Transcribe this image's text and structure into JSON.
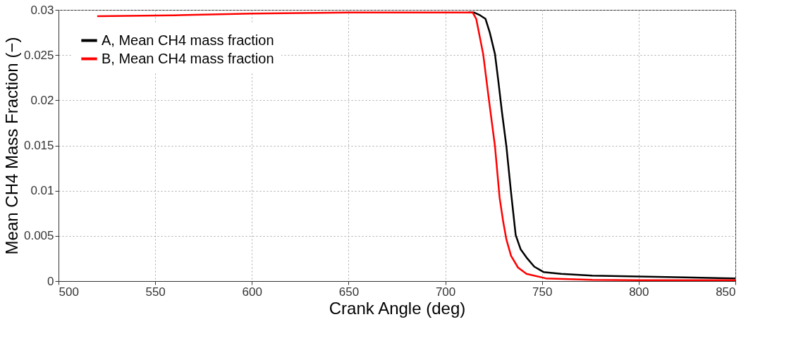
{
  "chart_data": {
    "type": "line",
    "xlabel": "Crank Angle (deg)",
    "ylabel": "Mean CH4 Mass Fraction (−)",
    "xlim": [
      500,
      850
    ],
    "xticks": [
      500,
      550,
      600,
      650,
      700,
      750,
      800,
      850
    ],
    "ylim": [
      0,
      0.03
    ],
    "yticks": [
      0,
      0.005,
      0.01,
      0.015,
      0.02,
      0.025,
      0.03
    ],
    "grid": true,
    "legend": "top left",
    "marker": "none",
    "line_style": "solid",
    "series": [
      {
        "name": "A, Mean CH4 mass fraction",
        "color": "#000000",
        "x": [
          712,
          715,
          718,
          720.8,
          723,
          725.7,
          727.5,
          729.3,
          731.6,
          734,
          736.4,
          739,
          742.4,
          746,
          750.8,
          760,
          776,
          800,
          823.7,
          850
        ],
        "values": [
          0.0297,
          0.0297,
          0.0294,
          0.029,
          0.0275,
          0.0251,
          0.022,
          0.0187,
          0.0149,
          0.0098,
          0.0051,
          0.0035,
          0.0025,
          0.0016,
          0.001,
          0.0008,
          0.0006,
          0.0005,
          0.0004,
          0.0003
        ]
      },
      {
        "name": "B, Mean CH4 mass fraction",
        "color": "#ff0000",
        "x": [
          520,
          560,
          600,
          650,
          700,
          714.2,
          716,
          719.6,
          722.6,
          725.7,
          728.1,
          730,
          731.6,
          734,
          737.6,
          742,
          752,
          776,
          800,
          850
        ],
        "values": [
          0.0293,
          0.0294,
          0.0296,
          0.0297,
          0.0297,
          0.0297,
          0.029,
          0.0251,
          0.02,
          0.0149,
          0.0092,
          0.0065,
          0.0046,
          0.0028,
          0.0015,
          0.0008,
          0.0003,
          0.00013,
          0.0001,
          0.0001
        ]
      }
    ]
  }
}
